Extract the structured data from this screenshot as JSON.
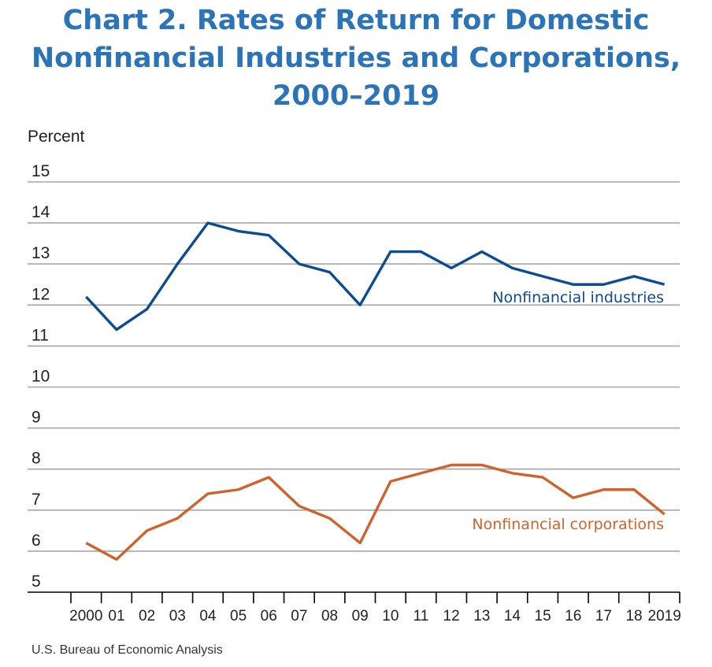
{
  "chart_data": {
    "type": "line",
    "title_lines": [
      "Chart 2. Rates of Return for Domestic",
      "Nonfinancial Industries and Corporations,",
      "2000–2019"
    ],
    "ylabel": "Percent",
    "xlabel": "",
    "ylim": [
      5,
      15
    ],
    "yticks": [
      15,
      14,
      13,
      12,
      11,
      10,
      9,
      8,
      7,
      6,
      5
    ],
    "grid": true,
    "categories": [
      "2000",
      "01",
      "02",
      "03",
      "04",
      "05",
      "06",
      "07",
      "08",
      "09",
      "10",
      "11",
      "12",
      "13",
      "14",
      "15",
      "16",
      "17",
      "18",
      "2019"
    ],
    "series": [
      {
        "name": "Nonfinancial industries",
        "color": "#0b4c93",
        "values": [
          12.2,
          11.4,
          11.9,
          13.0,
          14.0,
          13.8,
          13.7,
          13.0,
          12.8,
          12.0,
          13.3,
          13.3,
          12.9,
          13.3,
          12.9,
          12.7,
          12.5,
          12.5,
          12.7,
          12.5
        ]
      },
      {
        "name": "Nonfinancial corporations",
        "color": "#d2622b",
        "values": [
          6.2,
          5.8,
          6.5,
          6.8,
          7.4,
          7.5,
          7.8,
          7.1,
          6.8,
          6.2,
          7.7,
          7.9,
          8.1,
          8.1,
          7.9,
          7.8,
          7.3,
          7.5,
          7.5,
          6.9
        ]
      }
    ],
    "source": "U.S. Bureau of Economic Analysis"
  }
}
